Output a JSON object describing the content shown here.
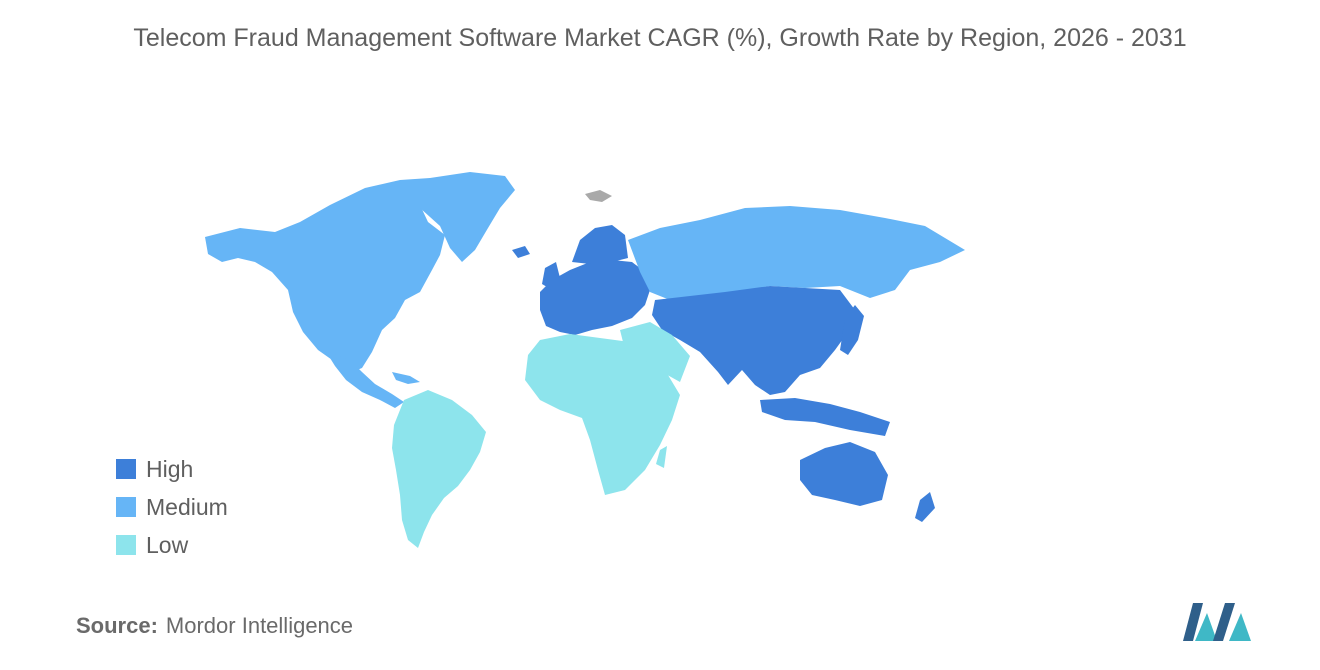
{
  "title": "Telecom Fraud Management Software Market CAGR (%), Growth Rate by Region, 2026 - 2031",
  "legend": {
    "items": [
      {
        "label": "High",
        "color": "#3d7fd9"
      },
      {
        "label": "Medium",
        "color": "#66b5f6"
      },
      {
        "label": "Low",
        "color": "#8de4ec"
      }
    ]
  },
  "regions": [
    {
      "name": "North America",
      "level": "Medium"
    },
    {
      "name": "Europe",
      "level": "High"
    },
    {
      "name": "Asia Pacific",
      "level": "High"
    },
    {
      "name": "South America",
      "level": "Low"
    },
    {
      "name": "Middle East and Africa",
      "level": "Low"
    }
  ],
  "colors": {
    "no_data": "#a9a9a9"
  },
  "source": {
    "label": "Source:",
    "value": "Mordor Intelligence"
  },
  "logo": {
    "icon": "mordor-intelligence-logo",
    "colors": [
      "#2f5f8a",
      "#3fb8c6"
    ]
  }
}
